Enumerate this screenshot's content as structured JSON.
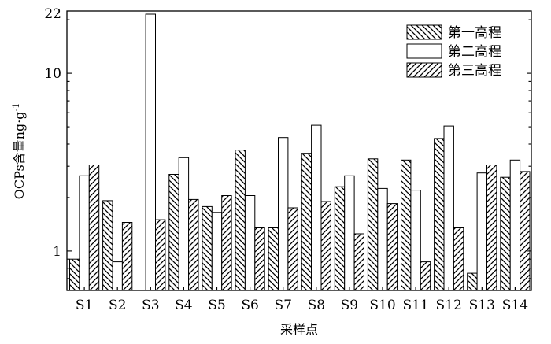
{
  "chart_data": {
    "type": "bar",
    "yscale": "log",
    "ylim": [
      0.6,
      22.4
    ],
    "ylabel_main": "OCPs含量",
    "ylabel_unit": "ng·g",
    "ylabel_exp": "-1",
    "xlabel": "采样点",
    "yticks": [
      1,
      10,
      22
    ],
    "categories": [
      "S1",
      "S2",
      "S3",
      "S4",
      "S5",
      "S6",
      "S7",
      "S8",
      "S9",
      "S10",
      "S11",
      "S12",
      "S13",
      "S14"
    ],
    "series": [
      {
        "name": "第一高程",
        "pattern": "back-hatch",
        "values": [
          0.9,
          1.92,
          null,
          2.7,
          1.78,
          3.7,
          1.35,
          3.55,
          2.3,
          3.3,
          3.25,
          4.3,
          0.75,
          2.6
        ]
      },
      {
        "name": "第二高程",
        "pattern": "open",
        "values": [
          2.65,
          0.87,
          21.5,
          3.35,
          1.65,
          2.05,
          4.35,
          5.1,
          2.65,
          2.25,
          2.2,
          5.05,
          2.75,
          3.25
        ]
      },
      {
        "name": "第三高程",
        "pattern": "forward-hatch",
        "values": [
          3.05,
          1.45,
          1.5,
          1.95,
          2.05,
          1.35,
          1.75,
          1.9,
          1.25,
          1.85,
          0.87,
          1.35,
          3.05,
          2.8
        ]
      }
    ],
    "legend": "top-right",
    "grid": false
  }
}
